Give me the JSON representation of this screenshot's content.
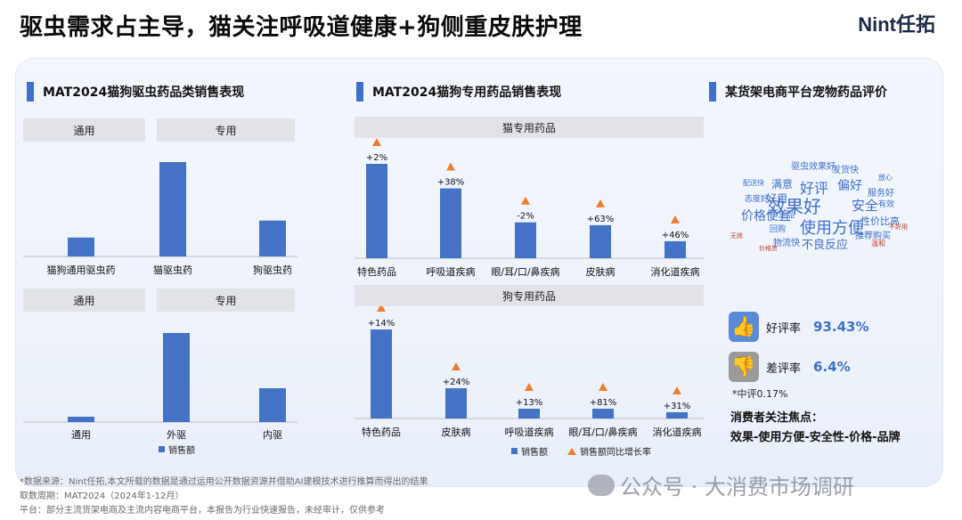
{
  "header": {
    "title": "驱虫需求占主导，猫关注呼吸道健康+狗侧重皮肤护理",
    "brand": "Nint任拓"
  },
  "colors": {
    "bar": "#4472c4",
    "growth_marker": "#ed7d31",
    "accent": "#3f6fc8"
  },
  "sections": {
    "deworm": {
      "title": "MAT2024猫狗驱虫药品类销售表现",
      "top_groups": [
        "通用",
        "专用"
      ],
      "bottom_groups": [
        "通用",
        "专用"
      ],
      "legend": "销售额"
    },
    "special": {
      "title": "MAT2024猫狗专用药品销售表现",
      "cat_header": "猫专用药品",
      "dog_header": "狗专用药品",
      "legend_sales": "销售额",
      "legend_growth": "销售额同比增长率"
    },
    "reviews": {
      "title": "某货架电商平台宠物药品评价",
      "good_label": "好评率",
      "good_value": "93.43%",
      "bad_label": "差评率",
      "bad_value": "6.4%",
      "neutral": "*中评0.17%",
      "focus_title": "消费者关注焦点：",
      "focus_text": "效果-使用方便-安全性-价格-品牌"
    }
  },
  "chart_data": [
    {
      "type": "bar",
      "title": "MAT2024猫狗驱虫药品类销售表现",
      "categories": [
        "猫狗通用驱虫药",
        "猫驱虫药",
        "狗驱虫药"
      ],
      "values": [
        20,
        100,
        38
      ],
      "note": "relative bar heights; no axis values printed"
    },
    {
      "type": "bar",
      "categories": [
        "通用",
        "外驱",
        "内驱"
      ],
      "values": [
        6,
        100,
        38
      ],
      "series": [
        {
          "name": "销售额",
          "values": [
            6,
            100,
            38
          ]
        }
      ],
      "note": "relative bar heights; no axis values printed"
    },
    {
      "type": "bar",
      "title": "猫专用药品",
      "categories": [
        "特色药品",
        "呼吸道疾病",
        "眼/耳/口/鼻疾病",
        "皮肤病",
        "消化道疾病"
      ],
      "series": [
        {
          "name": "销售额",
          "values": [
            100,
            74,
            38,
            35,
            18
          ]
        },
        {
          "name": "销售额同比增长率",
          "values": [
            2,
            38,
            -2,
            63,
            46
          ],
          "labels": [
            "+2%",
            "+38%",
            "-2%",
            "+63%",
            "+46%"
          ]
        }
      ]
    },
    {
      "type": "bar",
      "title": "狗专用药品",
      "categories": [
        "特色药品",
        "皮肤病",
        "呼吸道疾病",
        "眼/耳/口/鼻疾病",
        "消化道疾病"
      ],
      "series": [
        {
          "name": "销售额",
          "values": [
            100,
            34,
            11,
            11,
            7
          ]
        },
        {
          "name": "销售额同比增长率",
          "values": [
            14,
            24,
            13,
            81,
            31
          ],
          "labels": [
            "+14%",
            "+24%",
            "+13%",
            "+81%",
            "+31%"
          ]
        }
      ]
    }
  ],
  "wordcloud": [
    {
      "text": "效果好",
      "size": 20,
      "color": "#3f6fc8"
    },
    {
      "text": "使用方便",
      "size": 18,
      "color": "#3f6fc8"
    },
    {
      "text": "好评",
      "size": 16,
      "color": "#3f6fc8"
    },
    {
      "text": "偏好",
      "size": 14,
      "color": "#3f6fc8"
    },
    {
      "text": "安全",
      "size": 15,
      "color": "#3f6fc8"
    },
    {
      "text": "价格便宜",
      "size": 14,
      "color": "#3f6fc8"
    },
    {
      "text": "不良反应",
      "size": 13,
      "color": "#3f6fc8"
    },
    {
      "text": "满意",
      "size": 12,
      "color": "#3f6fc8"
    },
    {
      "text": "好用",
      "size": 12,
      "color": "#3f6fc8"
    },
    {
      "text": "性价比高",
      "size": 11,
      "color": "#3f6fc8"
    },
    {
      "text": "服务好",
      "size": 10,
      "color": "#3f6fc8"
    },
    {
      "text": "推荐购买",
      "size": 10,
      "color": "#3f6fc8"
    },
    {
      "text": "驱虫效果好",
      "size": 10,
      "color": "#3f6fc8"
    },
    {
      "text": "发货快",
      "size": 10,
      "color": "#3f6fc8"
    },
    {
      "text": "物流快",
      "size": 10,
      "color": "#3f6fc8"
    },
    {
      "text": "回购",
      "size": 9,
      "color": "#3f6fc8"
    },
    {
      "text": "态度好",
      "size": 9,
      "color": "#3f6fc8"
    },
    {
      "text": "正品",
      "size": 9,
      "color": "#3f6fc8"
    },
    {
      "text": "有效",
      "size": 9,
      "color": "#3f6fc8"
    },
    {
      "text": "放心",
      "size": 8,
      "color": "#3f6fc8"
    },
    {
      "text": "配送快",
      "size": 8,
      "color": "#3f6fc8"
    },
    {
      "text": "温和",
      "size": 8,
      "color": "#c0392b"
    },
    {
      "text": "无效",
      "size": 7,
      "color": "#c0392b"
    },
    {
      "text": "不好用",
      "size": 7,
      "color": "#c0392b"
    },
    {
      "text": "价格贵",
      "size": 7,
      "color": "#c0392b"
    }
  ],
  "footnotes": [
    "*数据来源：Nint任拓,本文所载的数据是通过运用公开数据资源并借助AI建模技术进行推算而得出的结果",
    "取数周期：MAT2024（2024年1-12月）",
    "平台：部分主流货架电商及主流内容电商平台，本报告为行业快速报告，未经审计，仅供参考"
  ],
  "watermark": "公众号 · 大消费市场调研"
}
